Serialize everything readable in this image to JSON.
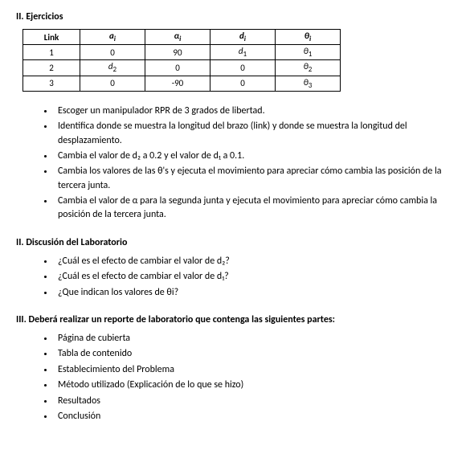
{
  "section1": {
    "title": "II. Ejercicios",
    "table": {
      "headers": [
        "Link",
        "a<i>",
        "α<i>",
        "d<i>",
        "θ<i>"
      ],
      "rows": [
        [
          "1",
          "0",
          "90",
          "d₁",
          "θ₁"
        ],
        [
          "2",
          "d₂",
          "0",
          "0",
          "θ₂"
        ],
        [
          "3",
          "0",
          "-90",
          "0",
          "θ₃"
        ]
      ]
    },
    "bullets": [
      "Escoger un manipulador RPR de 3 grados de libertad.",
      "Identifica donde se muestra la longitud del brazo (link) y donde se muestra la longitud del desplazamiento.",
      "Cambia el valor de d₂ a 0.2 y el valor de d₁ a 0.1.",
      "Cambia los valores de las θ's y ejecuta el movimiento para apreciar cómo cambia las posición de la tercera junta.",
      "Cambia el valor de α para la segunda junta y ejecuta el movimiento para apreciar cómo cambia la posición de la tercera junta."
    ]
  },
  "section2": {
    "title": "II. Discusión del Laboratorio",
    "bullets": [
      "¿Cuál es el efecto de cambiar el valor de d₂?",
      "¿Cuál es el efecto de cambiar el valor de d₁?",
      "¿Que indican los valores de θi?"
    ]
  },
  "section3": {
    "title": "III. Deberá realizar un reporte de laboratorio que contenga las siguientes partes:",
    "bullets": [
      "Página de cubierta",
      "Tabla de contenido",
      "Establecimiento del Problema",
      "Método utilizado (Explicación de lo que se hizo)",
      "Resultados",
      "Conclusión"
    ]
  }
}
